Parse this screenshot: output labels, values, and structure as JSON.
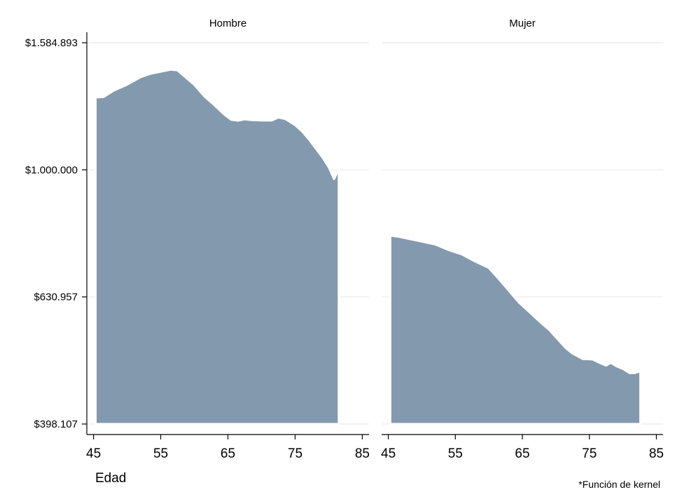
{
  "chart_data": {
    "type": "area",
    "xlabel": "Edad",
    "note": "*Función de kernel",
    "x_ticks": [
      "45",
      "55",
      "65",
      "75",
      "85"
    ],
    "xlim": [
      44,
      86
    ],
    "y_scale": "log",
    "y_ticks": [
      398107,
      630957,
      1000000,
      1584893
    ],
    "y_tick_labels": [
      "$398.107",
      "$630.957",
      "$1.000.000",
      "$1.584.893"
    ],
    "ylim": [
      380000,
      1680000
    ],
    "baseline": 398107,
    "grid": true,
    "area_color": "#8399ae",
    "panels": [
      {
        "title": "Hombre",
        "x": [
          45.3,
          46.5,
          48,
          50,
          52,
          53.5,
          55,
          56.5,
          57.5,
          58.5,
          60,
          61.5,
          63,
          64.5,
          65.5,
          66.5,
          67.5,
          68.5,
          70,
          71.5,
          72.5,
          73.5,
          75,
          76,
          77,
          78,
          79,
          80,
          80.8,
          81.5
        ],
        "values": [
          1300000,
          1302000,
          1333000,
          1362000,
          1399000,
          1417000,
          1427000,
          1438000,
          1434000,
          1404000,
          1361000,
          1305000,
          1264000,
          1221000,
          1199000,
          1195000,
          1201000,
          1198000,
          1196000,
          1196000,
          1209000,
          1203000,
          1176000,
          1151000,
          1119000,
          1083000,
          1049000,
          1010000,
          967000,
          1003000
        ]
      },
      {
        "title": "Mujer",
        "x": [
          45.3,
          46.5,
          48,
          50,
          52,
          54,
          56,
          58,
          60,
          61.5,
          63,
          64.5,
          66,
          67.5,
          69,
          70.5,
          71.5,
          72.5,
          74,
          75.5,
          76.5,
          77.5,
          78.2,
          79,
          80,
          81,
          81.8,
          82.6
        ],
        "values": [
          788000,
          785000,
          779000,
          771000,
          763000,
          748000,
          736000,
          717000,
          701000,
          673000,
          645000,
          618000,
          598000,
          578000,
          560000,
          538000,
          524000,
          514000,
          504000,
          503000,
          497000,
          492000,
          497000,
          491000,
          486000,
          479000,
          479000,
          482000
        ]
      }
    ]
  }
}
